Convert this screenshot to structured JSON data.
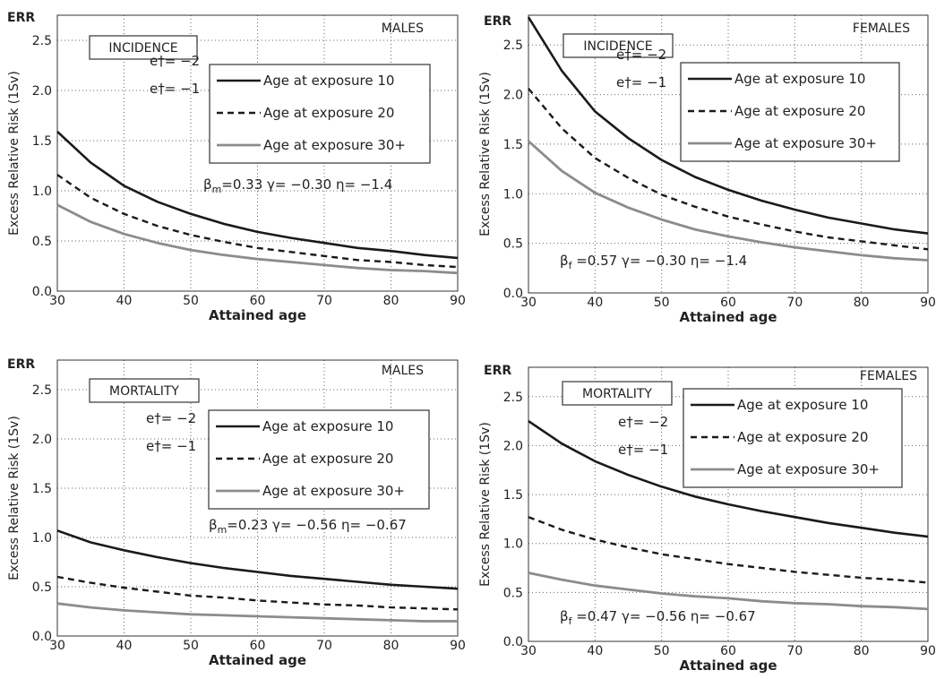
{
  "colors": {
    "age10": "#1a1a1a",
    "age20": "#1a1a1a",
    "age30": "#8c8c8c"
  },
  "chart_data": [
    {
      "type": "line",
      "corner_label": "MALES",
      "box_label": "INCIDENCE",
      "err_label": "ERR",
      "xlabel": "Attained age",
      "ylabel": "Excess Relative Risk (1Sv)",
      "xlim": [
        30,
        90
      ],
      "ylim": [
        0,
        2.75
      ],
      "xticks": [
        "30",
        "40",
        "50",
        "60",
        "70",
        "80",
        "90"
      ],
      "yticks": [
        "0.0",
        "0.5",
        "1.0",
        "1.5",
        "2.0",
        "2.5"
      ],
      "grid": true,
      "e_lines": [
        "e†= −2",
        "e†= −1"
      ],
      "params": {
        "beta_sym": "β",
        "beta_sub": "m",
        "rest": "=0.33  γ= −0.30  η= −1.4"
      },
      "legend": [
        "Age at exposure 10",
        "Age at exposure 20",
        "Age at exposure 30+"
      ],
      "x": [
        30,
        35,
        40,
        45,
        50,
        55,
        60,
        65,
        70,
        75,
        80,
        85,
        90
      ],
      "series": [
        {
          "name": "Age at exposure 10",
          "style": "solid",
          "values": [
            1.59,
            1.28,
            1.05,
            0.89,
            0.77,
            0.67,
            0.59,
            0.53,
            0.48,
            0.43,
            0.4,
            0.36,
            0.33
          ]
        },
        {
          "name": "Age at exposure 20",
          "style": "dashed",
          "values": [
            1.16,
            0.93,
            0.77,
            0.65,
            0.56,
            0.49,
            0.43,
            0.39,
            0.35,
            0.31,
            0.29,
            0.26,
            0.24
          ]
        },
        {
          "name": "Age at exposure 30+",
          "style": "gray",
          "values": [
            0.86,
            0.69,
            0.57,
            0.48,
            0.41,
            0.36,
            0.32,
            0.29,
            0.26,
            0.23,
            0.21,
            0.2,
            0.18
          ]
        }
      ]
    },
    {
      "type": "line",
      "corner_label": "FEMALES",
      "box_label": "INCIDENCE",
      "err_label": "ERR",
      "xlabel": "Attained age",
      "ylabel": "Excess Relative Risk (1Sv)",
      "xlim": [
        30,
        90
      ],
      "ylim": [
        0,
        2.8
      ],
      "xticks": [
        "30",
        "40",
        "50",
        "60",
        "70",
        "80",
        "90"
      ],
      "yticks": [
        "0.0",
        "0.5",
        "1.0",
        "1.5",
        "2.0",
        "2.5"
      ],
      "grid": true,
      "e_lines": [
        "e†= −2",
        "e†= −1"
      ],
      "params": {
        "beta_sym": "β",
        "beta_sub": "f",
        "rest": " =0.57  γ= −0.30  η= −1.4"
      },
      "legend": [
        "Age at exposure 10",
        "Age at exposure 20",
        "Age at exposure 30+"
      ],
      "x": [
        30,
        35,
        40,
        45,
        50,
        55,
        60,
        65,
        70,
        75,
        80,
        85,
        90
      ],
      "series": [
        {
          "name": "Age at exposure 10",
          "style": "solid",
          "values": [
            2.78,
            2.24,
            1.83,
            1.56,
            1.34,
            1.17,
            1.04,
            0.93,
            0.84,
            0.76,
            0.7,
            0.64,
            0.6
          ]
        },
        {
          "name": "Age at exposure 20",
          "style": "dashed",
          "values": [
            2.06,
            1.66,
            1.36,
            1.16,
            0.99,
            0.87,
            0.77,
            0.69,
            0.62,
            0.56,
            0.52,
            0.48,
            0.44
          ]
        },
        {
          "name": "Age at exposure 30+",
          "style": "gray",
          "values": [
            1.53,
            1.23,
            1.01,
            0.86,
            0.74,
            0.64,
            0.57,
            0.51,
            0.46,
            0.42,
            0.38,
            0.35,
            0.33
          ]
        }
      ]
    },
    {
      "type": "line",
      "corner_label": "MALES",
      "box_label": "MORTALITY",
      "err_label": "ERR",
      "xlabel": "Attained age",
      "ylabel": "Excess Relative Risk (1Sv)",
      "xlim": [
        30,
        90
      ],
      "ylim": [
        0,
        2.8
      ],
      "xticks": [
        "30",
        "40",
        "50",
        "60",
        "70",
        "80",
        "90"
      ],
      "yticks": [
        "0.0",
        "0.5",
        "1.0",
        "1.5",
        "2.0",
        "2.5"
      ],
      "grid": true,
      "e_lines": [
        "e†= −2",
        "e†= −1"
      ],
      "params": {
        "beta_sym": "β",
        "beta_sub": "m",
        "rest": "=0.23  γ= −0.56  η= −0.67"
      },
      "legend": [
        "Age at exposure 10",
        "Age at exposure 20",
        "Age at exposure 30+"
      ],
      "x": [
        30,
        35,
        40,
        45,
        50,
        55,
        60,
        65,
        70,
        75,
        80,
        85,
        90
      ],
      "series": [
        {
          "name": "Age at exposure 10",
          "style": "solid",
          "values": [
            1.07,
            0.95,
            0.87,
            0.8,
            0.74,
            0.69,
            0.65,
            0.61,
            0.58,
            0.55,
            0.52,
            0.5,
            0.48
          ]
        },
        {
          "name": "Age at exposure 20",
          "style": "dashed",
          "values": [
            0.6,
            0.54,
            0.49,
            0.45,
            0.41,
            0.39,
            0.36,
            0.34,
            0.32,
            0.31,
            0.29,
            0.28,
            0.27
          ]
        },
        {
          "name": "Age at exposure 30+",
          "style": "gray",
          "values": [
            0.33,
            0.29,
            0.26,
            0.24,
            0.22,
            0.21,
            0.2,
            0.19,
            0.18,
            0.17,
            0.16,
            0.15,
            0.15
          ]
        }
      ]
    },
    {
      "type": "line",
      "corner_label": "FEMALES",
      "box_label": "MORTALITY",
      "err_label": "ERR",
      "xlabel": "Attained age",
      "ylabel": "Excess Relative Risk (1Sv)",
      "xlim": [
        30,
        90
      ],
      "ylim": [
        0,
        2.8
      ],
      "xticks": [
        "30",
        "40",
        "50",
        "60",
        "70",
        "80",
        "90"
      ],
      "yticks": [
        "0.0",
        "0.5",
        "1.0",
        "1.5",
        "2.0",
        "2.5"
      ],
      "grid": true,
      "e_lines": [
        "e†= −2",
        "e†= −1"
      ],
      "params": {
        "beta_sym": "β",
        "beta_sub": "f",
        "rest": " =0.47  γ= −0.56  η= −0.67"
      },
      "legend": [
        "Age at exposure 10",
        "Age at exposure 20",
        "Age at exposure 30+"
      ],
      "x": [
        30,
        35,
        40,
        45,
        50,
        55,
        60,
        65,
        70,
        75,
        80,
        85,
        90
      ],
      "series": [
        {
          "name": "Age at exposure 10",
          "style": "solid",
          "values": [
            2.25,
            2.02,
            1.84,
            1.7,
            1.58,
            1.48,
            1.4,
            1.33,
            1.27,
            1.21,
            1.16,
            1.11,
            1.07
          ]
        },
        {
          "name": "Age at exposure 20",
          "style": "dashed",
          "values": [
            1.27,
            1.14,
            1.04,
            0.96,
            0.89,
            0.84,
            0.79,
            0.75,
            0.71,
            0.68,
            0.65,
            0.63,
            0.6
          ]
        },
        {
          "name": "Age at exposure 30+",
          "style": "gray",
          "values": [
            0.7,
            0.63,
            0.57,
            0.53,
            0.49,
            0.46,
            0.44,
            0.41,
            0.39,
            0.38,
            0.36,
            0.35,
            0.33
          ]
        }
      ]
    }
  ]
}
